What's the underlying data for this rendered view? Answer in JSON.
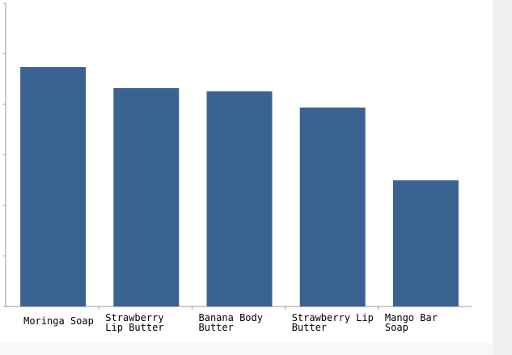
{
  "chart_data": {
    "type": "bar",
    "categories": [
      [
        "Moringa Soap"
      ],
      [
        "Strawberry",
        "Lip Butter"
      ],
      [
        "Banana Body",
        "Butter"
      ],
      [
        "Strawberry Lip",
        "Butter"
      ],
      [
        "Mango Bar",
        "Soap"
      ]
    ],
    "values": [
      296,
      270,
      266,
      246,
      156
    ],
    "ylim": [
      0,
      375
    ],
    "grid": false,
    "bar_color": "#3b6391",
    "axis_color": "#999999"
  }
}
